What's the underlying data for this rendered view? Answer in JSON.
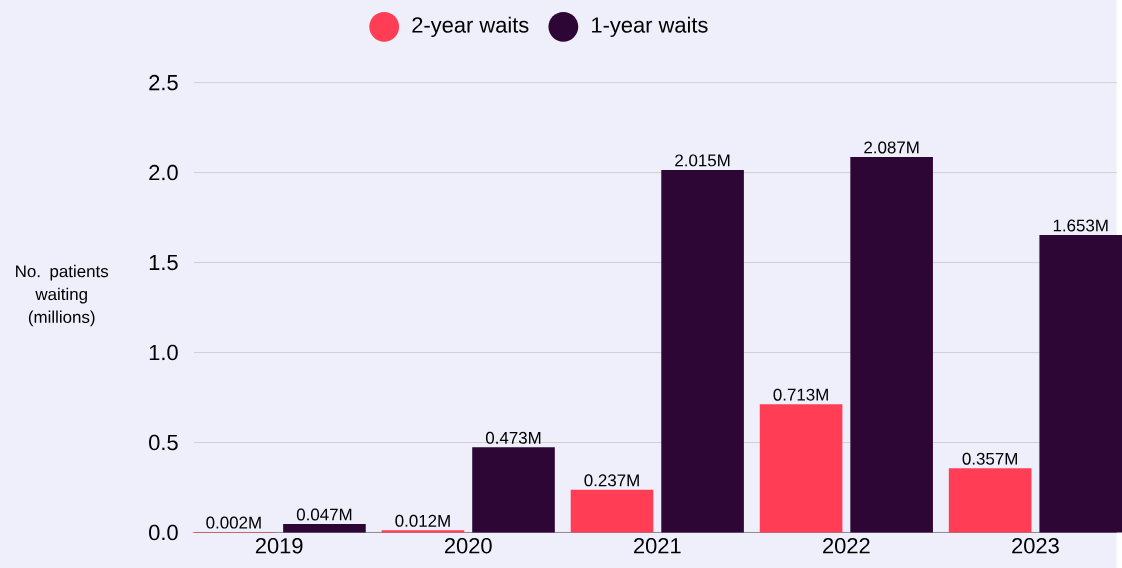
{
  "chart_data": {
    "type": "bar",
    "ylabel": "No. patients waiting (millions)",
    "categories": [
      "2019",
      "2020",
      "2021",
      "2022",
      "2023"
    ],
    "series": [
      {
        "name": "2-year waits",
        "color": "#ff3d55",
        "values": [
          0.002,
          0.012,
          0.237,
          0.713,
          0.357
        ],
        "value_labels": [
          "0.002M",
          "0.012M",
          "0.237M",
          "0.713M",
          "0.357M"
        ]
      },
      {
        "name": "1-year waits",
        "color": "#2d0636",
        "values": [
          0.047,
          0.473,
          2.015,
          2.087,
          1.653
        ],
        "value_labels": [
          "0.047M",
          "0.473M",
          "2.015M",
          "2.087M",
          "1.653M"
        ]
      }
    ],
    "ylim": [
      0,
      2.5
    ],
    "yticks": [
      {
        "value": 0,
        "label": "0.0"
      },
      0.5,
      {
        "value": 1,
        "label": "1.0"
      },
      1.5,
      {
        "value": 2,
        "label": "2.0"
      },
      2.5
    ],
    "grid": "y",
    "legend": "top"
  }
}
